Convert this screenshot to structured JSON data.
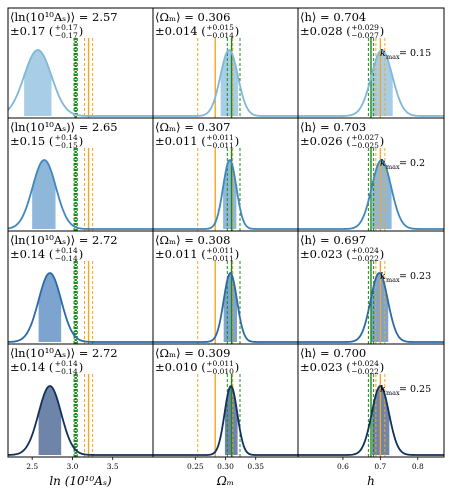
{
  "chart_data": {
    "type": "density-grid",
    "grid": "off",
    "parameters": [
      {
        "key": "lnAs",
        "xlabel": "ln (10¹⁰Aₛ)",
        "mean_symbol": "⟨ln(10¹⁰Aₛ)⟩",
        "xlim": [
          2.2,
          4.0
        ],
        "ticks": [
          2.5,
          3.0,
          3.5
        ],
        "tick_labels": [
          "2.5",
          "3.0",
          "3.5"
        ]
      },
      {
        "key": "Om",
        "xlabel": "Ωₘ",
        "mean_symbol": "⟨Ωₘ⟩",
        "xlim": [
          0.18,
          0.42
        ],
        "ticks": [
          0.25,
          0.3,
          0.35
        ],
        "tick_labels": [
          "0.25",
          "0.30",
          "0.35"
        ]
      },
      {
        "key": "h",
        "xlabel": "h",
        "mean_symbol": "⟨h⟩",
        "xlim": [
          0.48,
          0.87
        ],
        "ticks": [
          0.6,
          0.7,
          0.8
        ],
        "tick_labels": [
          "0.6",
          "0.7",
          "0.8"
        ]
      }
    ],
    "rows": [
      {
        "kmax_label": "k",
        "kmax_sub": "max",
        "kmax_value": "= 0.15",
        "color": "#7fb8d8",
        "fill": "#a8cde6",
        "cells": [
          {
            "mean": 2.57,
            "mean_text": "2.57",
            "std_text": "±0.17",
            "plus": "+0.17",
            "minus": "−0.17",
            "ci": [
              2.4,
              2.74
            ],
            "sigma": 0.17
          },
          {
            "mean": 0.306,
            "mean_text": "0.306",
            "std_text": "±0.014",
            "plus": "+0.015",
            "minus": "−0.014",
            "ci": [
              0.292,
              0.321
            ],
            "sigma": 0.0145
          },
          {
            "mean": 0.704,
            "mean_text": "0.704",
            "std_text": "±0.028",
            "plus": "+0.029",
            "minus": "−0.027",
            "ci": [
              0.677,
              0.733
            ],
            "sigma": 0.028
          }
        ]
      },
      {
        "kmax_label": "k",
        "kmax_sub": "max",
        "kmax_value": "= 0.2",
        "color": "#3f87bd",
        "fill": "#8fb7d9",
        "cells": [
          {
            "mean": 2.65,
            "mean_text": "2.65",
            "std_text": "±0.15",
            "plus": "+0.14",
            "minus": "−0.15",
            "ci": [
              2.5,
              2.79
            ],
            "sigma": 0.145
          },
          {
            "mean": 0.307,
            "mean_text": "0.307",
            "std_text": "±0.011",
            "plus": "+0.011",
            "minus": "−0.011",
            "ci": [
              0.296,
              0.318
            ],
            "sigma": 0.011
          },
          {
            "mean": 0.703,
            "mean_text": "0.703",
            "std_text": "±0.026",
            "plus": "+0.027",
            "minus": "−0.025",
            "ci": [
              0.678,
              0.73
            ],
            "sigma": 0.026
          }
        ]
      },
      {
        "kmax_label": "k",
        "kmax_sub": "max",
        "kmax_value": "= 0.23",
        "color": "#2c6aa6",
        "fill": "#7da4cf",
        "cells": [
          {
            "mean": 2.72,
            "mean_text": "2.72",
            "std_text": "±0.14",
            "plus": "+0.14",
            "minus": "−0.14",
            "ci": [
              2.58,
              2.86
            ],
            "sigma": 0.14
          },
          {
            "mean": 0.308,
            "mean_text": "0.308",
            "std_text": "±0.011",
            "plus": "+0.011",
            "minus": "−0.011",
            "ci": [
              0.297,
              0.319
            ],
            "sigma": 0.011
          },
          {
            "mean": 0.697,
            "mean_text": "0.697",
            "std_text": "±0.023",
            "plus": "+0.024",
            "minus": "−0.022",
            "ci": [
              0.675,
              0.721
            ],
            "sigma": 0.023
          }
        ]
      },
      {
        "kmax_label": "k",
        "kmax_sub": "max",
        "kmax_value": "= 0.25",
        "color": "#10305e",
        "fill": "#6e84a8",
        "cells": [
          {
            "mean": 2.72,
            "mean_text": "2.72",
            "std_text": "±0.14",
            "plus": "+0.14",
            "minus": "−0.14",
            "ci": [
              2.58,
              2.86
            ],
            "sigma": 0.14
          },
          {
            "mean": 0.309,
            "mean_text": "0.309",
            "std_text": "±0.010",
            "plus": "+0.011",
            "minus": "−0.010",
            "ci": [
              0.299,
              0.32
            ],
            "sigma": 0.0105
          },
          {
            "mean": 0.7,
            "mean_text": "0.700",
            "std_text": "±0.023",
            "plus": "+0.024",
            "minus": "−0.022",
            "ci": [
              0.678,
              0.724
            ],
            "sigma": 0.023
          }
        ]
      }
    ],
    "reference_lines": {
      "green_solid_color": "#1a8a1a",
      "green_dashed_color": "#1a8a1a",
      "orange_solid_color": "#f5a623",
      "orange_dashed_color": "#f5a623",
      "lnAs": {
        "green_solid": 3.04,
        "green_dashed": [
          3.02,
          3.06
        ],
        "orange_solid": 3.2,
        "orange_dashed": [
          3.15,
          3.25
        ]
      },
      "Om": {
        "green_solid": 0.31,
        "green_dashed": [
          0.303,
          0.324
        ],
        "orange_solid": 0.283,
        "orange_dashed": [
          0.254,
          0.312
        ]
      },
      "h": {
        "green_solid": 0.675,
        "green_dashed": [
          0.668,
          0.682
        ],
        "orange_solid": 0.7,
        "orange_dashed": [
          0.688,
          0.712
        ]
      }
    }
  }
}
